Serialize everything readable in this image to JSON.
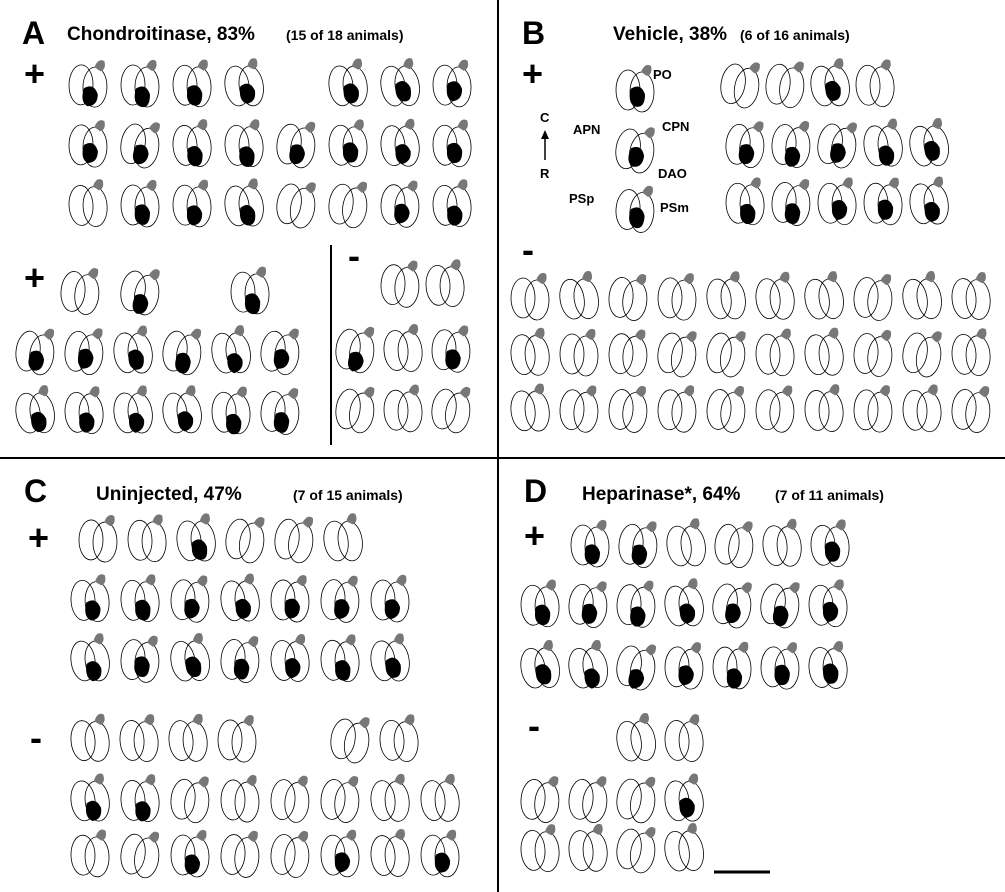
{
  "panels": [
    {
      "letter": "A",
      "title": "Chondroitinase, 83%",
      "note": "(15 of 18 animals)",
      "signs": [
        "+",
        "+",
        "-"
      ]
    },
    {
      "letter": "B",
      "title": "Vehicle, 38%",
      "note": "(6 of 16 animals)",
      "signs": [
        "+",
        "-"
      ]
    },
    {
      "letter": "C",
      "title": "Uninjected, 47%",
      "note": "(7 of 15 animals)",
      "signs": [
        "+",
        "-"
      ]
    },
    {
      "letter": "D",
      "title": "Heparinase*, 64%",
      "note": "(7 of 11 animals)",
      "signs": [
        "+",
        "-"
      ]
    }
  ],
  "labels": {
    "po": "PO",
    "cpn": "CPN",
    "apn": "APN",
    "dao": "DAO",
    "psp": "PSp",
    "psm": "PSm",
    "c": "C",
    "r": "R"
  }
}
